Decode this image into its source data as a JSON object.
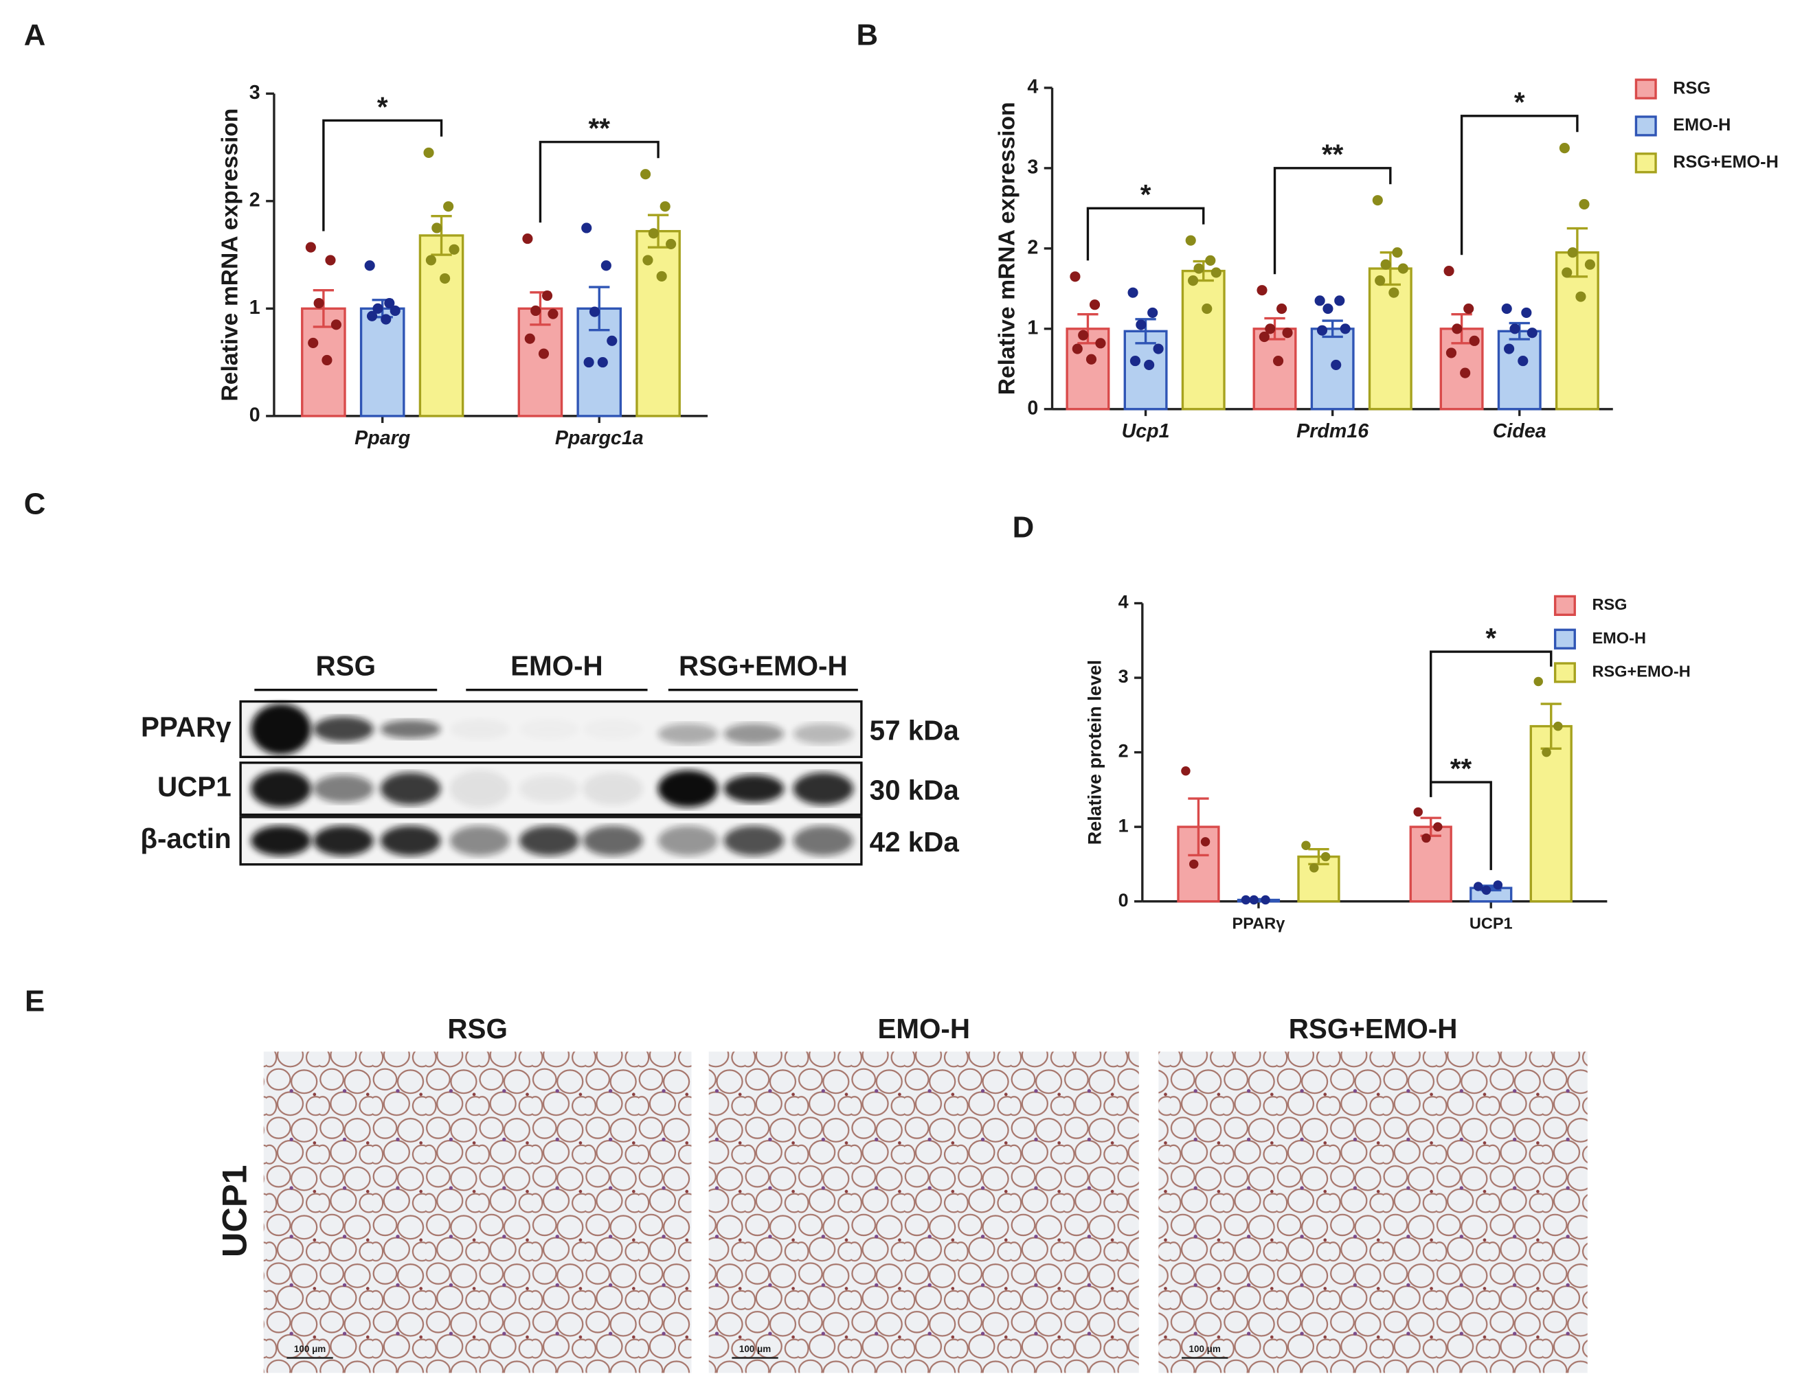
{
  "panel_labels": [
    "A",
    "B",
    "C",
    "D",
    "E"
  ],
  "chart_data": [
    {
      "type": "bar",
      "ylabel": "Relative mRNA expression",
      "categories": [
        "Pparg",
        "Ppargc1a"
      ],
      "italic_categories": true,
      "ylim": [
        0,
        3
      ],
      "yticks": [
        0,
        1,
        2,
        3
      ],
      "grid": false,
      "series": [
        {
          "color": "#f4a6a6",
          "edge_color": "#d94a4a",
          "point_color": "#8b1a1a",
          "values": [
            1.0,
            1.0
          ],
          "errors": [
            0.17,
            0.15
          ],
          "points": [
            [
              1.57,
              1.45,
              1.05,
              0.85,
              0.68,
              0.52
            ],
            [
              1.65,
              1.12,
              0.98,
              0.95,
              0.72,
              0.58
            ]
          ]
        },
        {
          "color": "#b4cff0",
          "edge_color": "#2f55b5",
          "point_color": "#1a2a8b",
          "values": [
            1.0,
            1.0
          ],
          "errors": [
            0.08,
            0.2
          ],
          "points": [
            [
              1.4,
              1.05,
              1.0,
              0.98,
              0.93,
              0.9
            ],
            [
              1.75,
              1.4,
              0.97,
              0.7,
              0.5,
              0.5
            ]
          ]
        },
        {
          "color": "#f6f28e",
          "edge_color": "#a6a21e",
          "point_color": "#8b8b1a",
          "values": [
            1.68,
            1.72
          ],
          "errors": [
            0.18,
            0.15
          ],
          "points": [
            [
              2.45,
              1.95,
              1.75,
              1.55,
              1.45,
              1.28
            ],
            [
              2.25,
              1.95,
              1.7,
              1.6,
              1.45,
              1.3
            ]
          ]
        }
      ],
      "significance": [
        {
          "category": 0,
          "from": 0,
          "to": 2,
          "label": "*"
        },
        {
          "category": 1,
          "from": 0,
          "to": 2,
          "label": "**"
        }
      ]
    },
    {
      "type": "bar",
      "ylabel": "Relative mRNA expression",
      "categories": [
        "Ucp1",
        "Prdm16",
        "Cidea"
      ],
      "italic_categories": true,
      "ylim": [
        0,
        4
      ],
      "yticks": [
        0,
        1,
        2,
        3,
        4
      ],
      "grid": false,
      "legend": "right",
      "series": [
        {
          "name": "RSG",
          "color": "#f4a6a6",
          "edge_color": "#d94a4a",
          "point_color": "#8b1a1a",
          "values": [
            1.0,
            1.0,
            1.0
          ],
          "errors": [
            0.18,
            0.13,
            0.18
          ],
          "points": [
            [
              1.65,
              1.3,
              0.92,
              0.82,
              0.75,
              0.62
            ],
            [
              1.48,
              1.25,
              1.0,
              0.95,
              0.9,
              0.6
            ],
            [
              1.72,
              1.25,
              1.0,
              0.85,
              0.7,
              0.45
            ]
          ]
        },
        {
          "name": "EMO-H",
          "color": "#b4cff0",
          "edge_color": "#2f55b5",
          "point_color": "#1a2a8b",
          "values": [
            0.97,
            1.0,
            0.97
          ],
          "errors": [
            0.15,
            0.1,
            0.1
          ],
          "points": [
            [
              1.45,
              1.2,
              1.05,
              0.75,
              0.6,
              0.55
            ],
            [
              1.35,
              1.35,
              1.25,
              1.0,
              0.98,
              0.55
            ],
            [
              1.25,
              1.2,
              1.0,
              0.95,
              0.75,
              0.6
            ]
          ]
        },
        {
          "name": "RSG+EMO-H",
          "color": "#f6f28e",
          "edge_color": "#a6a21e",
          "point_color": "#8b8b1a",
          "values": [
            1.72,
            1.75,
            1.95
          ],
          "errors": [
            0.12,
            0.2,
            0.3
          ],
          "points": [
            [
              2.1,
              1.85,
              1.75,
              1.7,
              1.6,
              1.25
            ],
            [
              2.6,
              1.95,
              1.8,
              1.75,
              1.6,
              1.45
            ],
            [
              3.25,
              2.55,
              1.95,
              1.8,
              1.7,
              1.4
            ]
          ]
        }
      ],
      "significance": [
        {
          "category": 0,
          "from": 0,
          "to": 2,
          "label": "*"
        },
        {
          "category": 1,
          "from": 0,
          "to": 2,
          "label": "**"
        },
        {
          "category": 2,
          "from": 0,
          "to": 2,
          "label": "*"
        }
      ]
    },
    {
      "type": "bar",
      "ylabel": "Relative protein level",
      "categories": [
        "PPARγ",
        "UCP1"
      ],
      "italic_categories": false,
      "ylim": [
        0,
        4
      ],
      "yticks": [
        0,
        1,
        2,
        3,
        4
      ],
      "grid": false,
      "legend": "upper right",
      "series": [
        {
          "name": "RSG",
          "color": "#f4a6a6",
          "edge_color": "#d94a4a",
          "point_color": "#8b1a1a",
          "values": [
            1.0,
            1.0
          ],
          "errors": [
            0.38,
            0.12
          ],
          "points": [
            [
              1.75,
              0.8,
              0.5
            ],
            [
              1.2,
              1.0,
              0.85
            ]
          ]
        },
        {
          "name": "EMO-H",
          "color": "#b4cff0",
          "edge_color": "#2f55b5",
          "point_color": "#1a2a8b",
          "values": [
            0.02,
            0.18
          ],
          "errors": [
            0.01,
            0.03
          ],
          "points": [
            [
              0.02,
              0.02,
              0.02
            ],
            [
              0.2,
              0.22,
              0.15
            ]
          ]
        },
        {
          "name": "RSG+EMO-H",
          "color": "#f6f28e",
          "edge_color": "#a6a21e",
          "point_color": "#8b8b1a",
          "values": [
            0.6,
            2.35
          ],
          "errors": [
            0.1,
            0.3
          ],
          "points": [
            [
              0.75,
              0.6,
              0.45
            ],
            [
              2.95,
              2.35,
              2.0
            ]
          ]
        }
      ],
      "significance": [
        {
          "category": 1,
          "from": 0,
          "to": 1,
          "label": "**"
        },
        {
          "category": 1,
          "from": 0,
          "to": 2,
          "label": "*"
        }
      ]
    }
  ],
  "western_blot": {
    "groups": [
      "RSG",
      "EMO-H",
      "RSG+EMO-H"
    ],
    "rows": [
      {
        "label": "PPARγ",
        "size": "57 kDa"
      },
      {
        "label": "UCP1",
        "size": "30 kDa"
      },
      {
        "label": "β-actin",
        "size": "42 kDa"
      }
    ]
  },
  "histology": {
    "columns": [
      "RSG",
      "EMO-H",
      "RSG+EMO-H"
    ],
    "row_label": "UCP1",
    "scale_bar": "100 μm"
  }
}
